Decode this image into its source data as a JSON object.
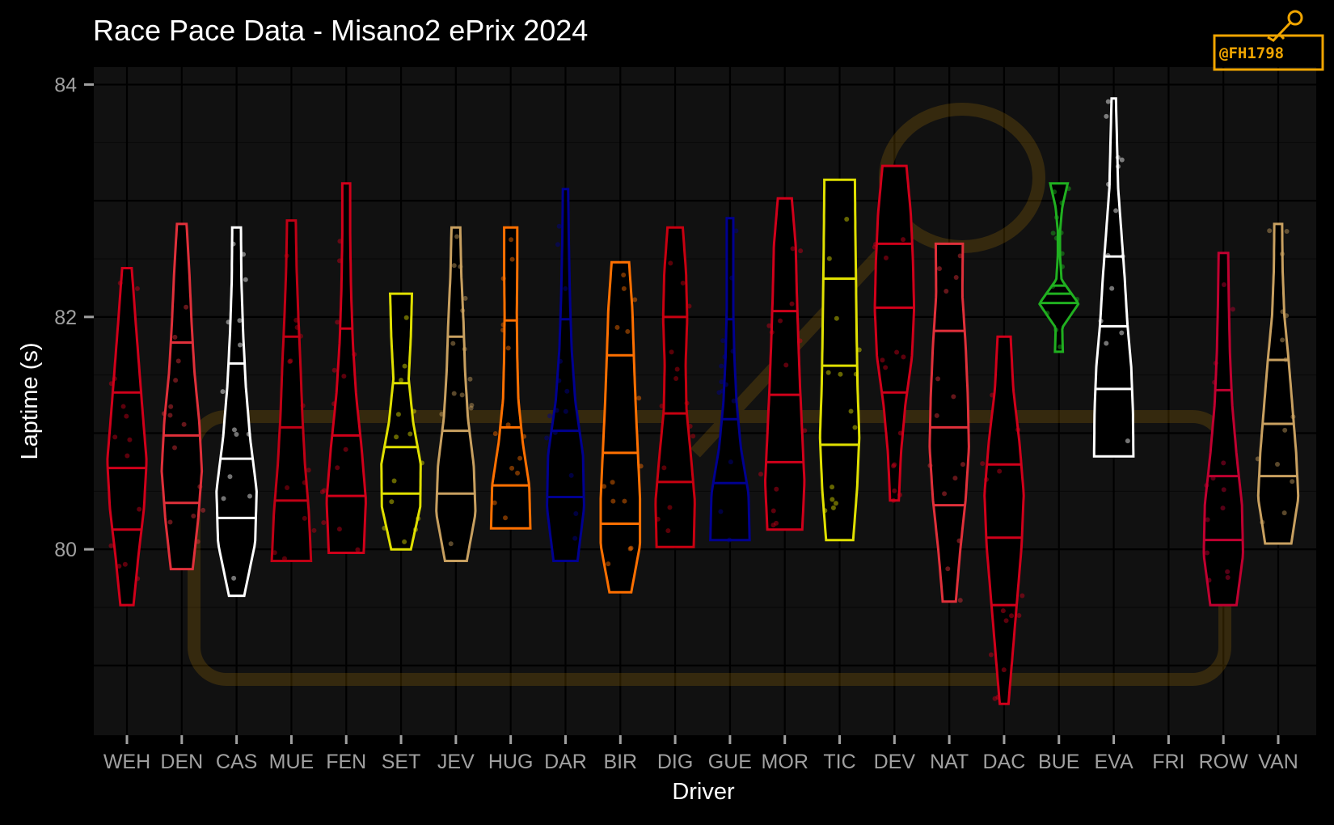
{
  "chart_data": {
    "type": "violin",
    "title": "Race Pace Data - Misano2 ePrix 2024",
    "xlabel": "Driver",
    "ylabel": "Laptime (s)",
    "ylim": [
      78.4,
      84.15
    ],
    "yticks": [
      80,
      82,
      84
    ],
    "grid": true,
    "legend": "none",
    "watermark": "@FH1798",
    "colors": {
      "background": "#000000",
      "panel": "#111111",
      "grid": "#000000",
      "text": "#ffffff",
      "tick_text": "#a0a0a0",
      "watermark": "#f0a500"
    },
    "categories": [
      "WEH",
      "DEN",
      "CAS",
      "MUE",
      "FEN",
      "SET",
      "JEV",
      "HUG",
      "DAR",
      "BIR",
      "DIG",
      "GUE",
      "MOR",
      "TIC",
      "DEV",
      "NAT",
      "DAC",
      "BUE",
      "EVA",
      "FRI",
      "ROW",
      "VAN"
    ],
    "series": [
      {
        "driver": "WEH",
        "color": "#d0001a",
        "min": 79.52,
        "max": 82.42,
        "q1": 80.17,
        "median": 80.7,
        "q3": 81.35,
        "widths": [
          0.3,
          0.52,
          0.78,
          0.9,
          0.72,
          0.55,
          0.38,
          0.22
        ]
      },
      {
        "driver": "DEN",
        "color": "#e0303a",
        "min": 79.83,
        "max": 82.8,
        "q1": 80.4,
        "median": 80.98,
        "q3": 81.78,
        "widths": [
          0.5,
          0.75,
          0.92,
          0.8,
          0.58,
          0.45,
          0.35,
          0.22
        ]
      },
      {
        "driver": "CAS",
        "color": "#ffffff",
        "min": 79.6,
        "max": 82.77,
        "q1": 80.27,
        "median": 80.78,
        "q3": 81.6,
        "widths": [
          0.35,
          0.85,
          0.92,
          0.62,
          0.42,
          0.3,
          0.22,
          0.2
        ]
      },
      {
        "driver": "MUE",
        "color": "#c00015",
        "min": 79.9,
        "max": 82.83,
        "q1": 80.42,
        "median": 81.05,
        "q3": 81.83,
        "widths": [
          0.9,
          0.8,
          0.62,
          0.5,
          0.42,
          0.32,
          0.24,
          0.2
        ]
      },
      {
        "driver": "FEN",
        "color": "#d0001a",
        "min": 79.97,
        "max": 83.15,
        "q1": 80.46,
        "median": 80.98,
        "q3": 81.9,
        "widths": [
          0.8,
          0.9,
          0.7,
          0.45,
          0.3,
          0.22,
          0.18,
          0.18
        ]
      },
      {
        "driver": "SET",
        "color": "#e0e000",
        "min": 80.0,
        "max": 82.2,
        "q1": 80.48,
        "median": 80.88,
        "q3": 81.43,
        "widths": [
          0.45,
          0.88,
          0.9,
          0.55,
          0.35,
          0.45,
          0.5
        ]
      },
      {
        "driver": "JEV",
        "color": "#c8a060",
        "min": 79.9,
        "max": 82.77,
        "q1": 80.48,
        "median": 81.02,
        "q3": 81.83,
        "widths": [
          0.5,
          0.9,
          0.82,
          0.55,
          0.42,
          0.35,
          0.25,
          0.2
        ]
      },
      {
        "driver": "HUG",
        "color": "#ff7000",
        "min": 80.18,
        "max": 82.77,
        "q1": 80.55,
        "median": 81.05,
        "q3": 81.97,
        "widths": [
          0.9,
          0.85,
          0.55,
          0.35,
          0.3,
          0.28,
          0.3,
          0.3
        ]
      },
      {
        "driver": "DAR",
        "color": "#000090",
        "min": 79.9,
        "max": 83.1,
        "q1": 80.45,
        "median": 81.02,
        "q3": 81.98,
        "widths": [
          0.55,
          0.85,
          0.8,
          0.45,
          0.28,
          0.2,
          0.15,
          0.12
        ]
      },
      {
        "driver": "BIR",
        "color": "#ff7000",
        "min": 79.63,
        "max": 82.47,
        "q1": 80.22,
        "median": 80.83,
        "q3": 81.67,
        "widths": [
          0.5,
          0.9,
          0.9,
          0.8,
          0.7,
          0.62,
          0.55,
          0.4
        ]
      },
      {
        "driver": "DIG",
        "color": "#c80010",
        "min": 80.02,
        "max": 82.77,
        "q1": 80.58,
        "median": 81.17,
        "q3": 82.0,
        "widths": [
          0.85,
          0.9,
          0.72,
          0.52,
          0.48,
          0.55,
          0.5,
          0.35
        ]
      },
      {
        "driver": "GUE",
        "color": "#000090",
        "min": 80.08,
        "max": 82.85,
        "q1": 80.57,
        "median": 81.12,
        "q3": 81.98,
        "widths": [
          0.9,
          0.85,
          0.5,
          0.3,
          0.2,
          0.15,
          0.15,
          0.15
        ]
      },
      {
        "driver": "MOR",
        "color": "#d0001a",
        "min": 80.17,
        "max": 83.02,
        "q1": 80.75,
        "median": 81.33,
        "q3": 82.05,
        "widths": [
          0.8,
          0.9,
          0.8,
          0.7,
          0.62,
          0.55,
          0.5,
          0.32
        ]
      },
      {
        "driver": "TIC",
        "color": "#e0e000",
        "min": 80.08,
        "max": 83.18,
        "q1": 80.9,
        "median": 81.58,
        "q3": 82.33,
        "widths": [
          0.62,
          0.8,
          0.9,
          0.82,
          0.78,
          0.75,
          0.72,
          0.7
        ]
      },
      {
        "driver": "DEV",
        "color": "#d0001a",
        "min": 80.42,
        "max": 83.3,
        "q1": 81.35,
        "median": 82.08,
        "q3": 82.63,
        "widths": [
          0.2,
          0.3,
          0.5,
          0.8,
          0.9,
          0.85,
          0.75,
          0.55
        ]
      },
      {
        "driver": "NAT",
        "color": "#e0303a",
        "min": 79.55,
        "max": 82.63,
        "q1": 80.38,
        "median": 81.05,
        "q3": 81.88,
        "widths": [
          0.3,
          0.5,
          0.75,
          0.9,
          0.85,
          0.75,
          0.6,
          0.62
        ]
      },
      {
        "driver": "DAC",
        "color": "#d0001a",
        "min": 78.67,
        "max": 81.83,
        "q1": 79.52,
        "median": 80.1,
        "q3": 80.73,
        "widths": [
          0.2,
          0.4,
          0.6,
          0.8,
          0.9,
          0.7,
          0.42,
          0.3
        ]
      },
      {
        "driver": "BUE",
        "color": "#20b020",
        "min": 81.7,
        "max": 83.15,
        "q1": 82.12,
        "median": 82.2,
        "q3": 82.27,
        "widths": [
          0.18,
          0.15,
          0.9,
          0.12,
          0.05,
          0.05,
          0.15,
          0.4
        ]
      },
      {
        "driver": "EVA",
        "color": "#ffffff",
        "min": 80.8,
        "max": 83.88,
        "q1": 81.38,
        "median": 81.92,
        "q3": 82.52,
        "widths": [
          0.9,
          0.88,
          0.8,
          0.62,
          0.5,
          0.35,
          0.2,
          0.15,
          0.1
        ]
      },
      {
        "driver": "FRI",
        "color": "#888888",
        "min": null,
        "max": null,
        "q1": null,
        "median": null,
        "q3": null,
        "widths": []
      },
      {
        "driver": "ROW",
        "color": "#c00030",
        "min": 79.52,
        "max": 82.55,
        "q1": 80.08,
        "median": 80.63,
        "q3": 81.37,
        "widths": [
          0.6,
          0.9,
          0.85,
          0.6,
          0.4,
          0.3,
          0.25,
          0.22
        ]
      },
      {
        "driver": "VAN",
        "color": "#c8a060",
        "min": 80.05,
        "max": 82.8,
        "q1": 80.63,
        "median": 81.08,
        "q3": 81.63,
        "widths": [
          0.6,
          0.92,
          0.82,
          0.65,
          0.48,
          0.28,
          0.2,
          0.18
        ]
      }
    ]
  }
}
